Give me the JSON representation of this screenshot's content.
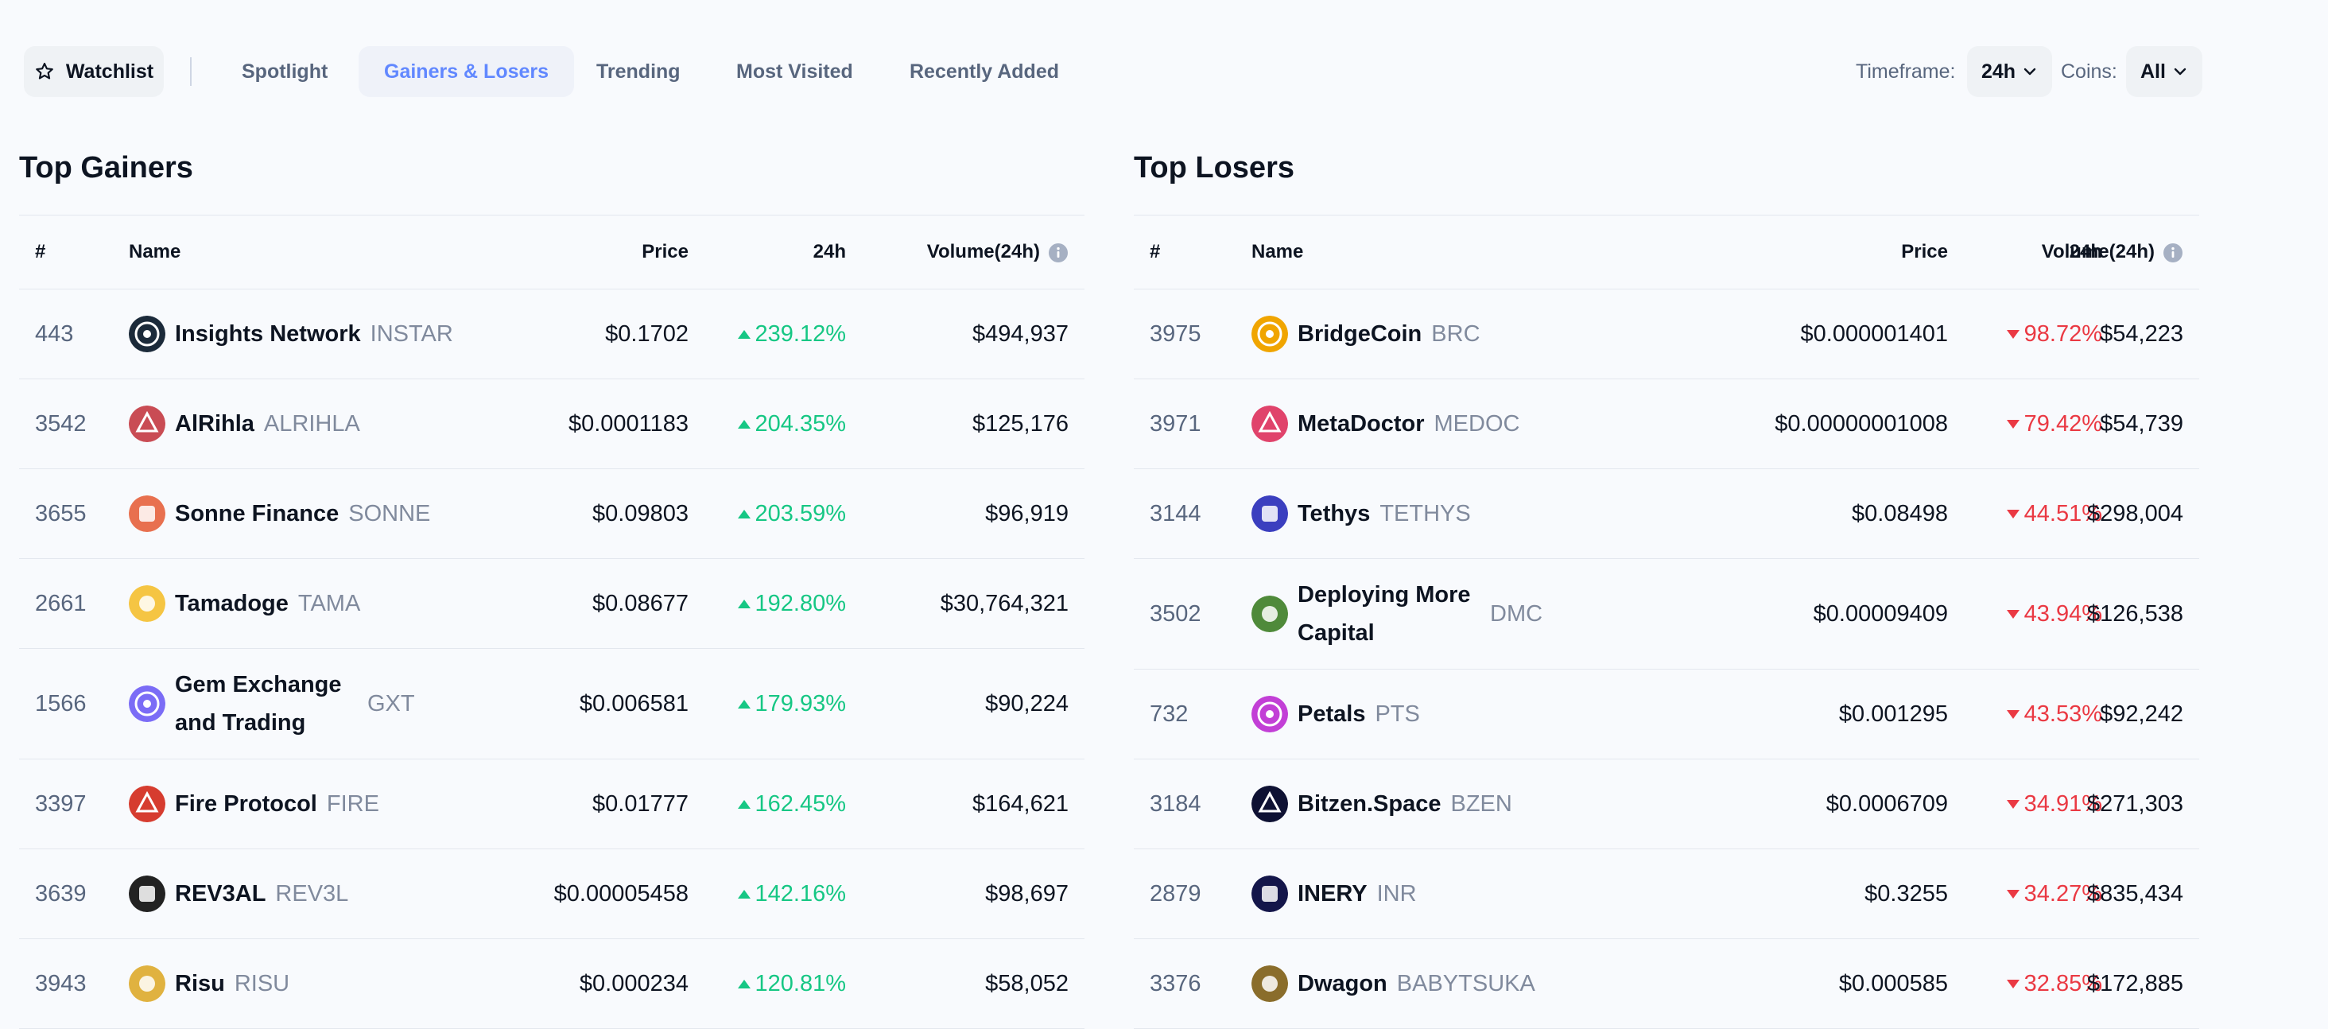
{
  "toolbar": {
    "watchlist_label": "Watchlist",
    "tabs": [
      {
        "label": "Spotlight",
        "active": false
      },
      {
        "label": "Gainers & Losers",
        "active": true
      },
      {
        "label": "Trending",
        "active": false
      },
      {
        "label": "Most Visited",
        "active": false
      },
      {
        "label": "Recently Added",
        "active": false
      }
    ],
    "timeframe_label": "Timeframe:",
    "timeframe_value": "24h",
    "coins_label": "Coins:",
    "coins_value": "All"
  },
  "columns": {
    "rank": "#",
    "name": "Name",
    "price": "Price",
    "change": "24h",
    "volume": "Volume(24h)"
  },
  "gainers": {
    "title": "Top Gainers",
    "rows": [
      {
        "rank": "443",
        "name": "Insights Network",
        "symbol": "INSTAR",
        "price": "$0.1702",
        "change": "239.12%",
        "volume": "$494,937",
        "icon": "insights-network-logo",
        "color": "#1b2a3a"
      },
      {
        "rank": "3542",
        "name": "AlRihla",
        "symbol": "ALRIHLA",
        "price": "$0.0001183",
        "change": "204.35%",
        "volume": "$125,176",
        "icon": "alrihla-logo",
        "color": "#c94c54"
      },
      {
        "rank": "3655",
        "name": "Sonne Finance",
        "symbol": "SONNE",
        "price": "$0.09803",
        "change": "203.59%",
        "volume": "$96,919",
        "icon": "sonne-finance-logo",
        "color": "#e8704f"
      },
      {
        "rank": "2661",
        "name": "Tamadoge",
        "symbol": "TAMA",
        "price": "$0.08677",
        "change": "192.80%",
        "volume": "$30,764,321",
        "icon": "tamadoge-logo",
        "color": "#f5c543"
      },
      {
        "rank": "1566",
        "name": "Gem Exchange and Trading",
        "symbol": "GXT",
        "price": "$0.006581",
        "change": "179.93%",
        "volume": "$90,224",
        "icon": "gem-exchange-logo",
        "color": "#7b6cf6"
      },
      {
        "rank": "3397",
        "name": "Fire Protocol",
        "symbol": "FIRE",
        "price": "$0.01777",
        "change": "162.45%",
        "volume": "$164,621",
        "icon": "fire-protocol-logo",
        "color": "#d63c2f"
      },
      {
        "rank": "3639",
        "name": "REV3AL",
        "symbol": "REV3L",
        "price": "$0.00005458",
        "change": "142.16%",
        "volume": "$98,697",
        "icon": "rev3al-logo",
        "color": "#222222"
      },
      {
        "rank": "3943",
        "name": "Risu",
        "symbol": "RISU",
        "price": "$0.000234",
        "change": "120.81%",
        "volume": "$58,052",
        "icon": "risu-logo",
        "color": "#e0b240"
      }
    ]
  },
  "losers": {
    "title": "Top Losers",
    "rows": [
      {
        "rank": "3975",
        "name": "BridgeCoin",
        "symbol": "BRC",
        "price": "$0.000001401",
        "change": "98.72%",
        "volume": "$54,223",
        "icon": "bridgecoin-logo",
        "color": "#f0a500"
      },
      {
        "rank": "3971",
        "name": "MetaDoctor",
        "symbol": "MEDOC",
        "price": "$0.00000001008",
        "change": "79.42%",
        "volume": "$54,739",
        "icon": "metadoctor-logo",
        "color": "#e0436b"
      },
      {
        "rank": "3144",
        "name": "Tethys",
        "symbol": "TETHYS",
        "price": "$0.08498",
        "change": "44.51%",
        "volume": "$298,004",
        "icon": "tethys-logo",
        "color": "#3b3fbf"
      },
      {
        "rank": "3502",
        "name": "Deploying More Capital",
        "symbol": "DMC",
        "price": "$0.00009409",
        "change": "43.94%",
        "volume": "$126,538",
        "icon": "deploying-more-capital-logo",
        "color": "#4f8a3a"
      },
      {
        "rank": "732",
        "name": "Petals",
        "symbol": "PTS",
        "price": "$0.001295",
        "change": "43.53%",
        "volume": "$92,242",
        "icon": "petals-logo",
        "color": "#c23fd6"
      },
      {
        "rank": "3184",
        "name": "Bitzen.Space",
        "symbol": "BZEN",
        "price": "$0.0006709",
        "change": "34.91%",
        "volume": "$271,303",
        "icon": "bitzen-space-logo",
        "color": "#0e1133"
      },
      {
        "rank": "2879",
        "name": "INERY",
        "symbol": "INR",
        "price": "$0.3255",
        "change": "34.27%",
        "volume": "$835,434",
        "icon": "inery-logo",
        "color": "#14164a"
      },
      {
        "rank": "3376",
        "name": "Dwagon",
        "symbol": "BABYTSUKA",
        "price": "$0.000585",
        "change": "32.85%",
        "volume": "$172,885",
        "icon": "dwagon-logo",
        "color": "#8a6d2b"
      }
    ]
  }
}
